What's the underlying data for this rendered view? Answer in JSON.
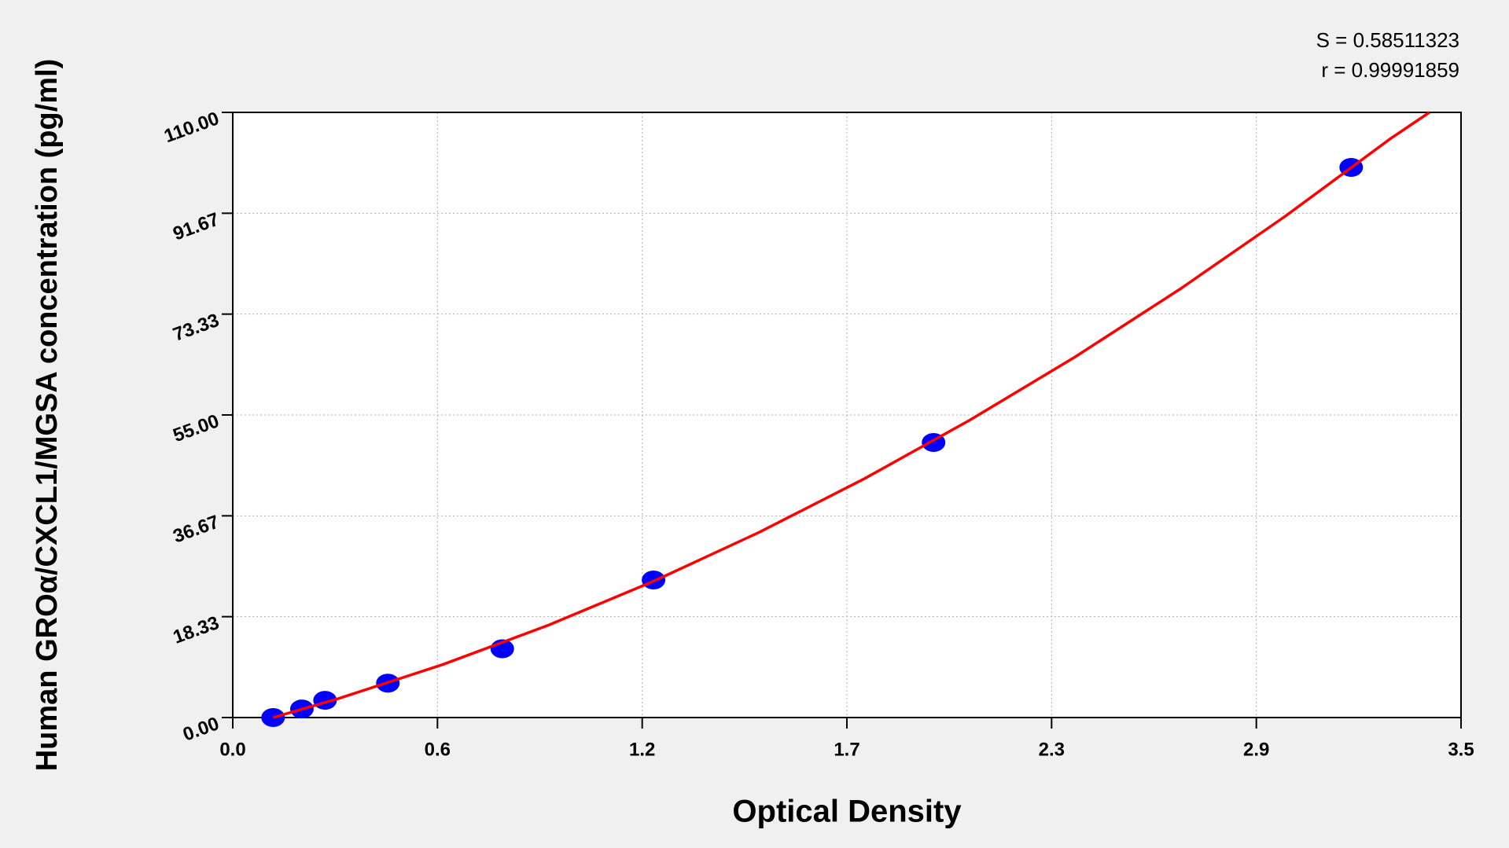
{
  "chart_data": {
    "type": "scatter",
    "x_label": "Optical Density",
    "y_label": "Human GROα/CXCL1/MGSA concentration (pg/ml)",
    "annotations": [
      "S = 0.58511323",
      "r = 0.99991859"
    ],
    "points": {
      "color": "#0000ff",
      "x": [
        0.115,
        0.197,
        0.263,
        0.442,
        0.768,
        1.199,
        1.997,
        3.187
      ],
      "y": [
        0,
        1.56,
        3.13,
        6.25,
        12.5,
        25,
        50,
        100
      ]
    },
    "fit": {
      "color": "#ff0000",
      "x": [
        0.115,
        0.3,
        0.6,
        0.9,
        1.2,
        1.5,
        1.8,
        2.1,
        2.4,
        2.7,
        3.0,
        3.3,
        3.41
      ],
      "y": [
        0,
        3.42,
        9.67,
        16.8,
        24.8,
        33.67,
        43.42,
        54.05,
        65.54,
        77.91,
        91.16,
        105.27,
        110
      ]
    },
    "xlim": [
      0,
      3.5
    ],
    "ylim": [
      0,
      110
    ],
    "xticks": [
      {
        "value": 0,
        "label": "0.0"
      },
      {
        "value": 0.5833,
        "label": "0.6"
      },
      {
        "value": 1.1667,
        "label": "1.2"
      },
      {
        "value": 1.75,
        "label": "1.7"
      },
      {
        "value": 2.3333,
        "label": "2.3"
      },
      {
        "value": 2.9167,
        "label": "2.9"
      },
      {
        "value": 3.5,
        "label": "3.5"
      }
    ],
    "yticks": [
      {
        "value": 0,
        "label": "0.00"
      },
      {
        "value": 18.3333,
        "label": "18.33"
      },
      {
        "value": 36.6667,
        "label": "36.67"
      },
      {
        "value": 55,
        "label": "55.00"
      },
      {
        "value": 73.3333,
        "label": "73.33"
      },
      {
        "value": 91.6667,
        "label": "91.67"
      },
      {
        "value": 110,
        "label": "110.00"
      }
    ],
    "grid": true
  }
}
